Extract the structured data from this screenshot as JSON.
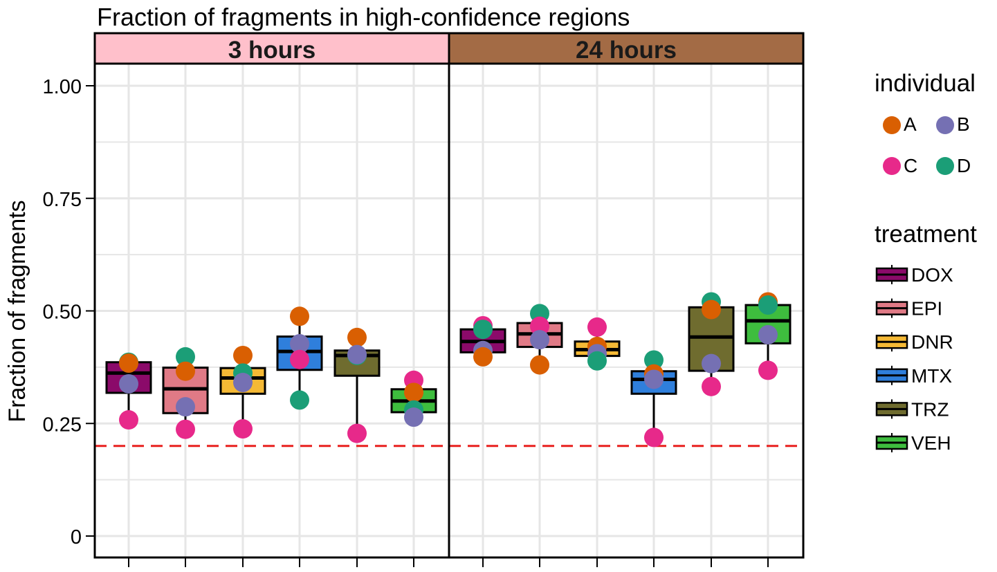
{
  "chart_data": {
    "type": "boxplot",
    "title": "Fraction of fragments in high-confidence regions",
    "ylabel": "Fraction of fragments",
    "ylim": [
      -0.05,
      1.05
    ],
    "yticks": [
      0,
      0.25,
      0.5,
      0.75,
      1.0
    ],
    "ytick_labels": [
      "0",
      "0.25",
      "0.50",
      "0.75",
      "1.00"
    ],
    "grid": true,
    "reference_line": {
      "y": 0.2,
      "color": "#e8201e",
      "style": "dashed"
    },
    "treatments": [
      "DOX",
      "EPI",
      "DNR",
      "MTX",
      "TRZ",
      "VEH"
    ],
    "individuals": [
      "A",
      "B",
      "C",
      "D"
    ],
    "panels": [
      {
        "label": "3 hours",
        "strip_color": "#ffc0cb",
        "boxes": [
          {
            "treatment": "DOX",
            "q1": 0.318,
            "median": 0.362,
            "q3": 0.386,
            "lower": 0.258,
            "upper": 0.388
          },
          {
            "treatment": "EPI",
            "q1": 0.273,
            "median": 0.327,
            "q3": 0.374,
            "lower": 0.237,
            "upper": 0.398
          },
          {
            "treatment": "DNR",
            "q1": 0.316,
            "median": 0.351,
            "q3": 0.373,
            "lower": 0.238,
            "upper": 0.401
          },
          {
            "treatment": "MTX",
            "q1": 0.369,
            "median": 0.41,
            "q3": 0.443,
            "lower": 0.302,
            "upper": 0.488
          },
          {
            "treatment": "TRZ",
            "q1": 0.356,
            "median": 0.401,
            "q3": 0.412,
            "lower": 0.228,
            "upper": 0.441
          },
          {
            "treatment": "VEH",
            "q1": 0.275,
            "median": 0.3,
            "q3": 0.326,
            "lower": 0.264,
            "upper": 0.346
          }
        ],
        "points": [
          {
            "treatment": "DOX",
            "individual": "D",
            "y": 0.386
          },
          {
            "treatment": "DOX",
            "individual": "A",
            "y": 0.384
          },
          {
            "treatment": "DOX",
            "individual": "B",
            "y": 0.338
          },
          {
            "treatment": "DOX",
            "individual": "C",
            "y": 0.258
          },
          {
            "treatment": "EPI",
            "individual": "D",
            "y": 0.398
          },
          {
            "treatment": "EPI",
            "individual": "A",
            "y": 0.366
          },
          {
            "treatment": "EPI",
            "individual": "B",
            "y": 0.287
          },
          {
            "treatment": "EPI",
            "individual": "C",
            "y": 0.237
          },
          {
            "treatment": "DNR",
            "individual": "A",
            "y": 0.401
          },
          {
            "treatment": "DNR",
            "individual": "D",
            "y": 0.362
          },
          {
            "treatment": "DNR",
            "individual": "B",
            "y": 0.341
          },
          {
            "treatment": "DNR",
            "individual": "C",
            "y": 0.238
          },
          {
            "treatment": "MTX",
            "individual": "A",
            "y": 0.488
          },
          {
            "treatment": "MTX",
            "individual": "B",
            "y": 0.427
          },
          {
            "treatment": "MTX",
            "individual": "C",
            "y": 0.392
          },
          {
            "treatment": "MTX",
            "individual": "D",
            "y": 0.302
          },
          {
            "treatment": "TRZ",
            "individual": "A",
            "y": 0.441
          },
          {
            "treatment": "TRZ",
            "individual": "D",
            "y": 0.401
          },
          {
            "treatment": "TRZ",
            "individual": "B",
            "y": 0.403
          },
          {
            "treatment": "TRZ",
            "individual": "C",
            "y": 0.228
          },
          {
            "treatment": "VEH",
            "individual": "C",
            "y": 0.346
          },
          {
            "treatment": "VEH",
            "individual": "A",
            "y": 0.319
          },
          {
            "treatment": "VEH",
            "individual": "D",
            "y": 0.28
          },
          {
            "treatment": "VEH",
            "individual": "B",
            "y": 0.264
          }
        ]
      },
      {
        "label": "24 hours",
        "strip_color": "#a36b45",
        "boxes": [
          {
            "treatment": "DOX",
            "q1": 0.408,
            "median": 0.432,
            "q3": 0.459,
            "lower": 0.398,
            "upper": 0.467
          },
          {
            "treatment": "EPI",
            "q1": 0.42,
            "median": 0.449,
            "q3": 0.473,
            "lower": 0.38,
            "upper": 0.494
          },
          {
            "treatment": "DNR",
            "q1": 0.4,
            "median": 0.414,
            "q3": 0.432,
            "lower": 0.389,
            "upper": 0.464
          },
          {
            "treatment": "MTX",
            "q1": 0.316,
            "median": 0.348,
            "q3": 0.366,
            "lower": 0.219,
            "upper": 0.391
          },
          {
            "treatment": "TRZ",
            "q1": 0.367,
            "median": 0.442,
            "q3": 0.508,
            "lower": 0.332,
            "upper": 0.52
          },
          {
            "treatment": "VEH",
            "q1": 0.428,
            "median": 0.478,
            "q3": 0.513,
            "lower": 0.368,
            "upper": 0.52
          }
        ],
        "points": [
          {
            "treatment": "DOX",
            "individual": "C",
            "y": 0.467
          },
          {
            "treatment": "DOX",
            "individual": "D",
            "y": 0.459
          },
          {
            "treatment": "DOX",
            "individual": "B",
            "y": 0.412
          },
          {
            "treatment": "DOX",
            "individual": "A",
            "y": 0.398
          },
          {
            "treatment": "EPI",
            "individual": "D",
            "y": 0.494
          },
          {
            "treatment": "EPI",
            "individual": "C",
            "y": 0.466
          },
          {
            "treatment": "EPI",
            "individual": "B",
            "y": 0.436
          },
          {
            "treatment": "EPI",
            "individual": "A",
            "y": 0.38
          },
          {
            "treatment": "DNR",
            "individual": "C",
            "y": 0.464
          },
          {
            "treatment": "DNR",
            "individual": "A",
            "y": 0.421
          },
          {
            "treatment": "DNR",
            "individual": "B",
            "y": 0.405
          },
          {
            "treatment": "DNR",
            "individual": "D",
            "y": 0.389
          },
          {
            "treatment": "MTX",
            "individual": "D",
            "y": 0.391
          },
          {
            "treatment": "MTX",
            "individual": "A",
            "y": 0.36
          },
          {
            "treatment": "MTX",
            "individual": "B",
            "y": 0.348
          },
          {
            "treatment": "MTX",
            "individual": "C",
            "y": 0.219
          },
          {
            "treatment": "TRZ",
            "individual": "D",
            "y": 0.52
          },
          {
            "treatment": "TRZ",
            "individual": "A",
            "y": 0.503
          },
          {
            "treatment": "TRZ",
            "individual": "B",
            "y": 0.383
          },
          {
            "treatment": "TRZ",
            "individual": "C",
            "y": 0.332
          },
          {
            "treatment": "VEH",
            "individual": "A",
            "y": 0.52
          },
          {
            "treatment": "VEH",
            "individual": "D",
            "y": 0.513
          },
          {
            "treatment": "VEH",
            "individual": "B",
            "y": 0.447
          },
          {
            "treatment": "VEH",
            "individual": "C",
            "y": 0.368
          }
        ]
      }
    ],
    "legends": [
      {
        "title": "individual",
        "kind": "point",
        "items": [
          {
            "label": "A",
            "color": "#d95f02"
          },
          {
            "label": "B",
            "color": "#7570b3"
          },
          {
            "label": "C",
            "color": "#e7298a"
          },
          {
            "label": "D",
            "color": "#1b9e77"
          }
        ]
      },
      {
        "title": "treatment",
        "kind": "box",
        "items": [
          {
            "label": "DOX",
            "color": "#8b0a6a"
          },
          {
            "label": "EPI",
            "color": "#e07a86"
          },
          {
            "label": "DNR",
            "color": "#f5b935"
          },
          {
            "label": "MTX",
            "color": "#2f7fdc"
          },
          {
            "label": "TRZ",
            "color": "#6f6c2f"
          },
          {
            "label": "VEH",
            "color": "#3ebd3e"
          }
        ]
      }
    ]
  }
}
